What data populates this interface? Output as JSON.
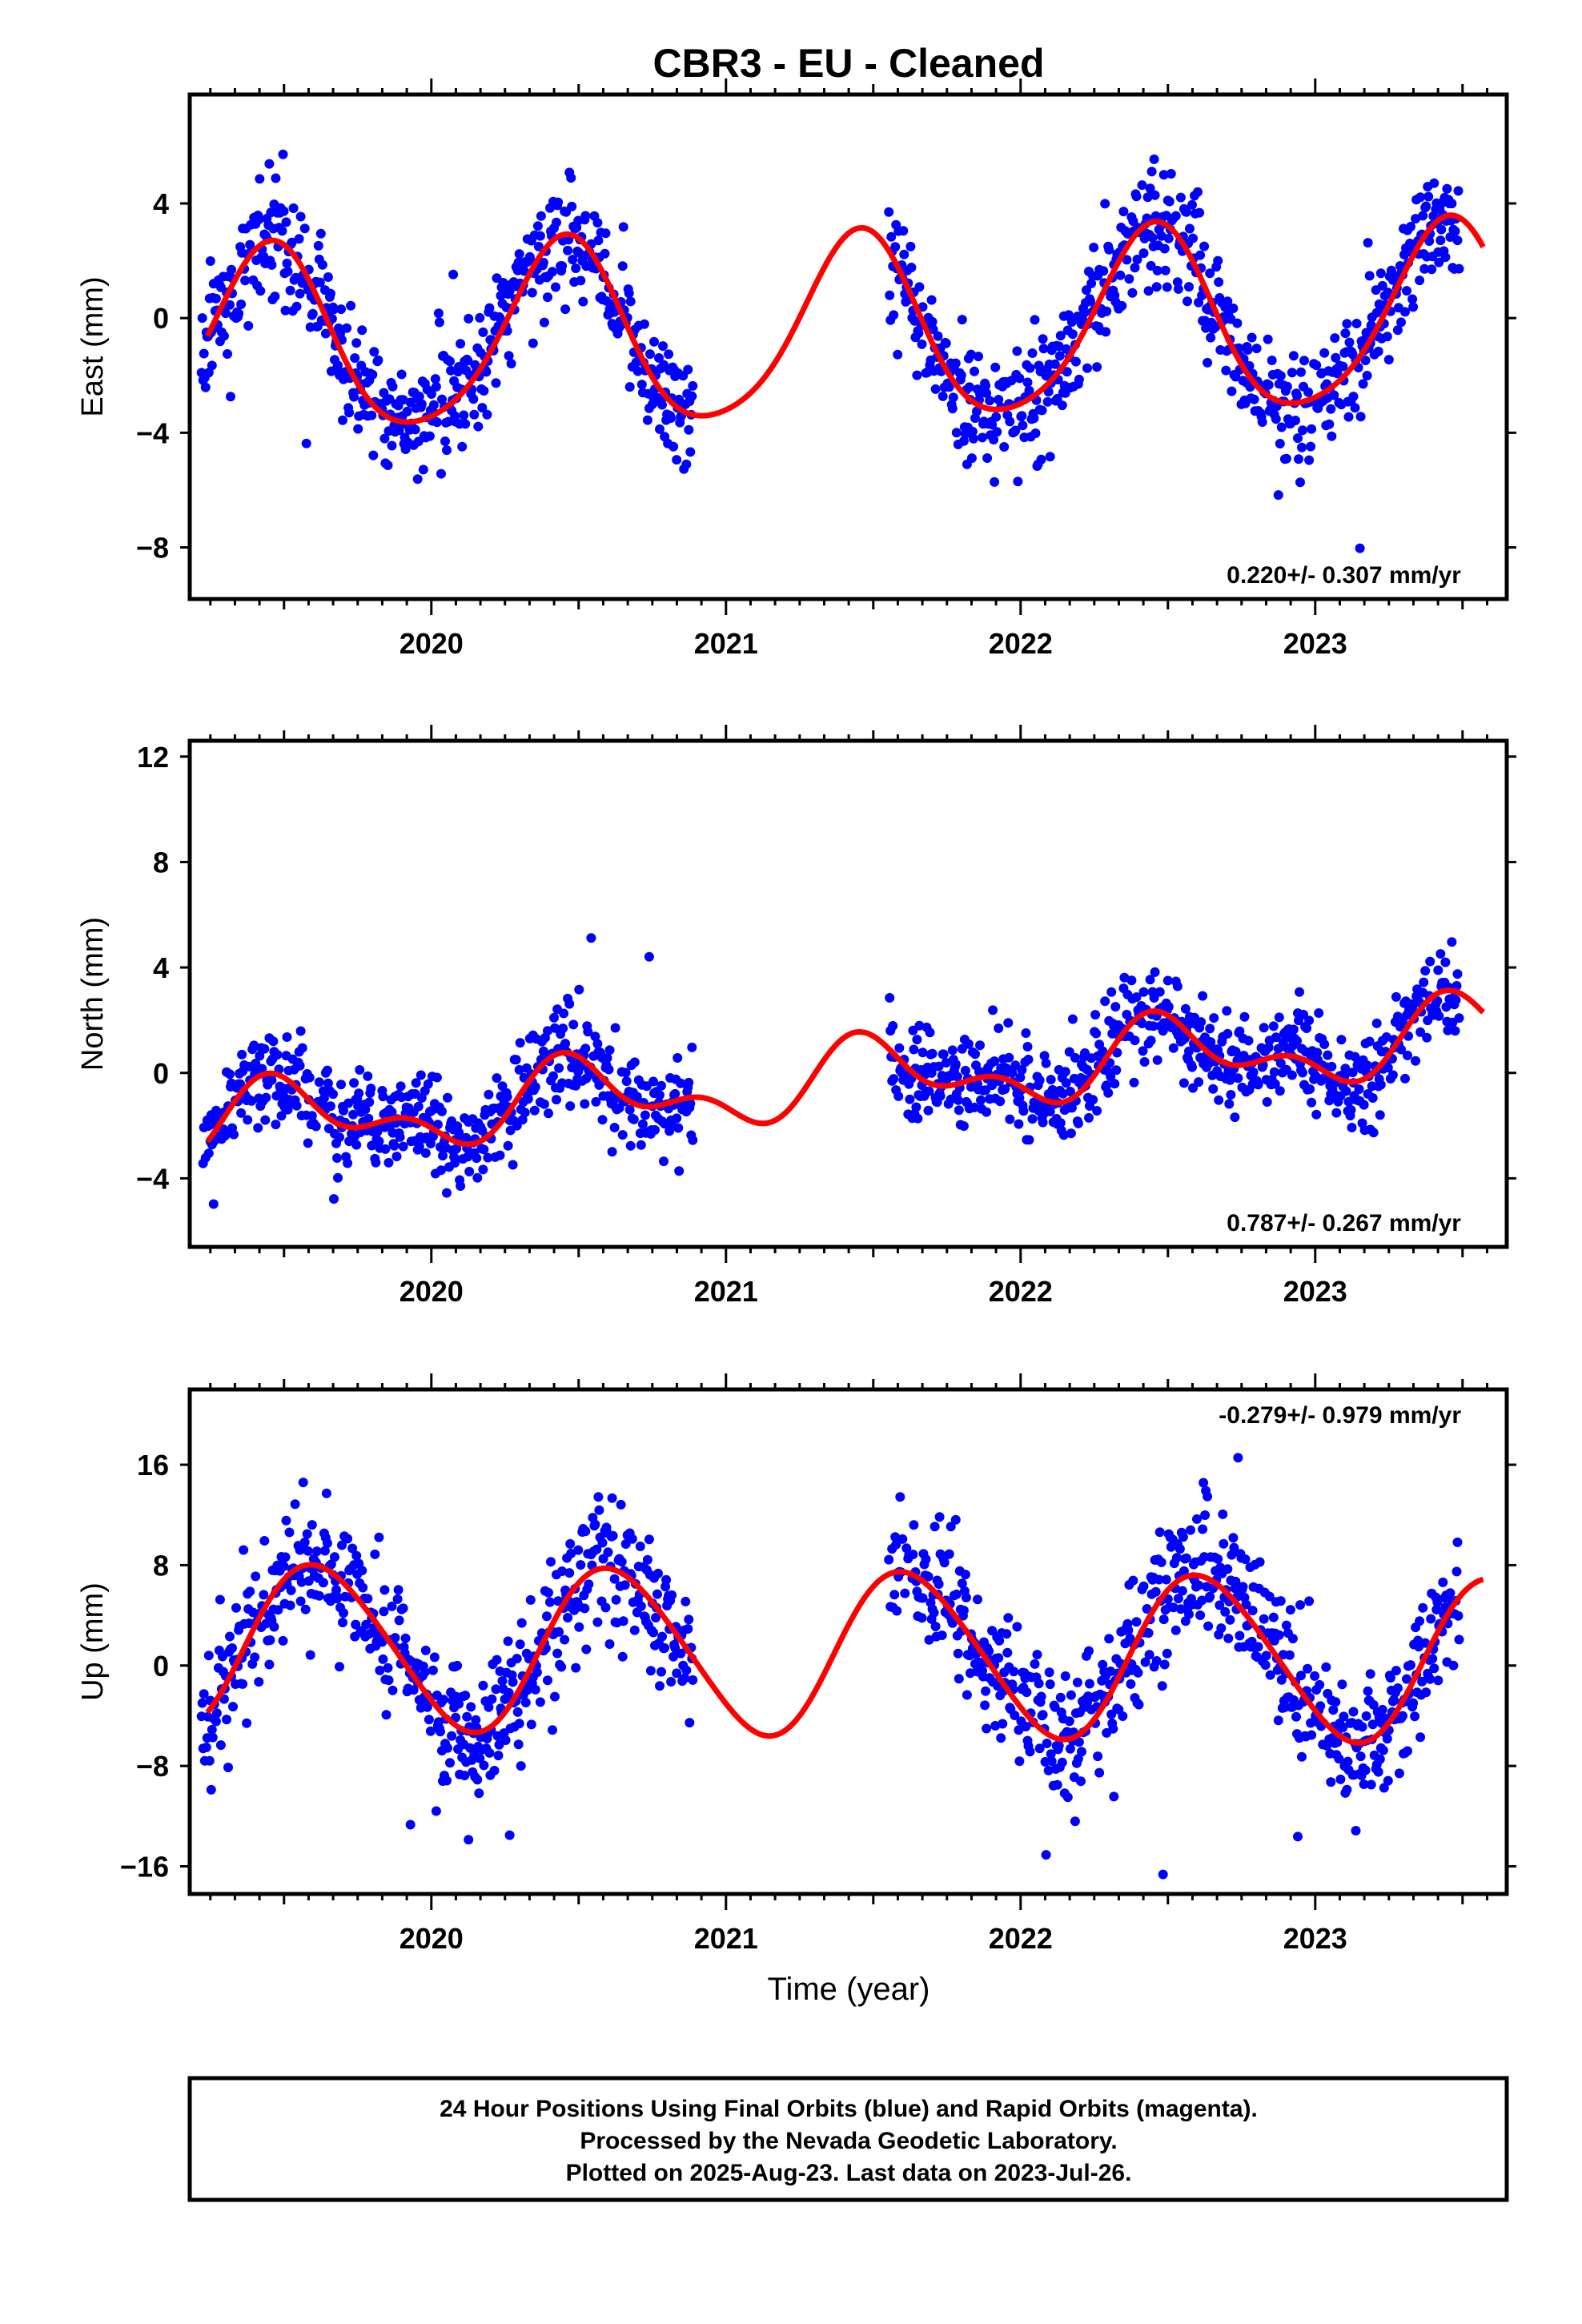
{
  "title": "CBR3  - EU - Cleaned",
  "xlabel": "Time (year)",
  "x_tick_labels": [
    "2020",
    "2021",
    "2022",
    "2023"
  ],
  "footer_lines": [
    "24 Hour Positions Using Final Orbits (blue) and Rapid Orbits (magenta).",
    "Processed by the Nevada Geodetic Laboratory.",
    "Plotted on 2025-Aug-23. Last data on 2023-Jul-26."
  ],
  "colors": {
    "final_orbits": "#0000ff",
    "rapid_orbits": "#ff00ff",
    "model": "#ff0000",
    "frame": "#000000"
  },
  "chart_data": [
    {
      "type": "scatter",
      "name": "east",
      "ylabel": "East (mm)",
      "rate_label": "0.220+/- 0.307 mm/yr",
      "xlim": [
        2019.18,
        2023.65
      ],
      "ylim": [
        -9.8,
        7.8
      ],
      "yticks": [
        -8,
        -4,
        0,
        4
      ],
      "y_tick_labels": [
        "−8",
        "−4",
        "0",
        "4"
      ],
      "gaps": [
        [
          2020.89,
          2021.55
        ]
      ],
      "model": {
        "offset": -0.5,
        "rate": 0.22,
        "ref": 2021.4,
        "annual_amp": 3.2,
        "annual_peak": 2021.45,
        "semi_amp": 0.45,
        "semi_phase": 0.3
      },
      "noise_sd": 1.0,
      "seed": 11
    },
    {
      "type": "scatter",
      "name": "north",
      "ylabel": "North (mm)",
      "rate_label": "0.787+/- 0.267 mm/yr",
      "xlim": [
        2019.18,
        2023.65
      ],
      "ylim": [
        -6.6,
        12.6
      ],
      "yticks": [
        -4,
        0,
        4,
        8,
        12
      ],
      "y_tick_labels": [
        "−4",
        "0",
        "4",
        "8",
        "12"
      ],
      "gaps": [
        [
          2020.89,
          2021.55
        ]
      ],
      "model": {
        "offset": -0.3,
        "rate": 0.787,
        "ref": 2021.4,
        "annual_amp": 1.15,
        "annual_peak": 2021.5,
        "semi_amp": 0.75,
        "semi_phase": 0.9
      },
      "noise_sd": 0.9,
      "seed": 23
    },
    {
      "type": "scatter",
      "name": "up",
      "ylabel": "Up (mm)",
      "rate_label": "-0.279+/- 0.979 mm/yr",
      "xlim": [
        2019.18,
        2023.65
      ],
      "ylim": [
        -18.2,
        22.0
      ],
      "yticks": [
        -16,
        -8,
        0,
        8,
        16
      ],
      "y_tick_labels": [
        "−16",
        "−8",
        "0",
        "8",
        "16"
      ],
      "gaps": [
        [
          2020.89,
          2021.55
        ]
      ],
      "model": {
        "offset": 1.0,
        "rate": -0.279,
        "ref": 2021.4,
        "annual_amp": 6.5,
        "annual_peak": 2021.62,
        "semi_amp": 0.6,
        "semi_phase": 0.2
      },
      "noise_sd": 2.6,
      "seed": 37
    }
  ]
}
